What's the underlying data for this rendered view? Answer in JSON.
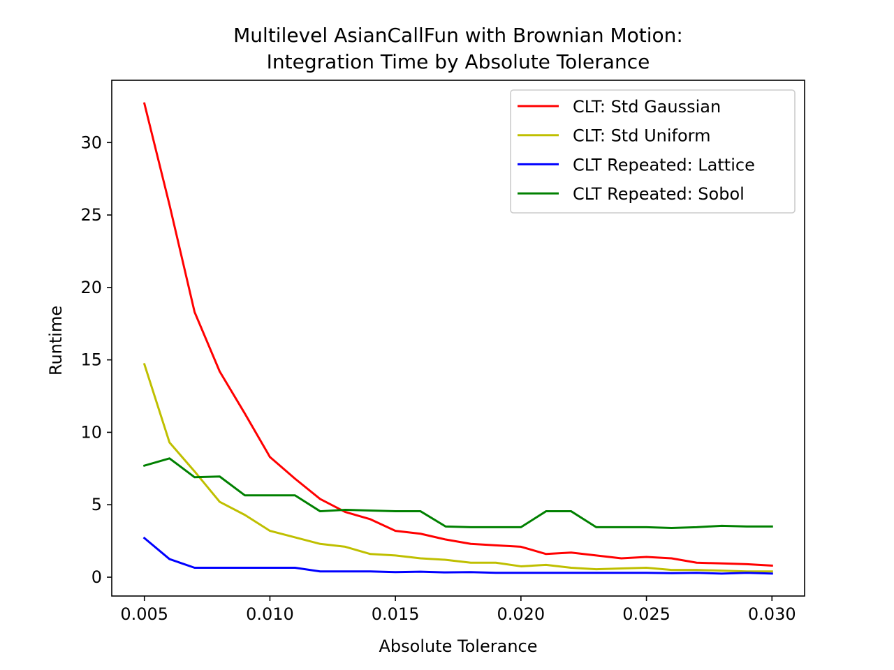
{
  "chart_data": {
    "type": "line",
    "title_line1": "Multilevel AsianCallFun with Brownian Motion:",
    "title_line2": "Integration Time by Absolute Tolerance",
    "xlabel": "Absolute Tolerance",
    "ylabel": "Runtime",
    "xlim": [
      0.0037,
      0.0313
    ],
    "ylim": [
      -1.3,
      34.3
    ],
    "x_ticks": [
      0.005,
      0.01,
      0.015,
      0.02,
      0.025,
      0.03
    ],
    "x_tick_labels": [
      "0.005",
      "0.010",
      "0.015",
      "0.020",
      "0.025",
      "0.030"
    ],
    "y_ticks": [
      0,
      5,
      10,
      15,
      20,
      25,
      30
    ],
    "y_tick_labels": [
      "0",
      "5",
      "10",
      "15",
      "20",
      "25",
      "30"
    ],
    "grid": false,
    "legend_position": "top-right",
    "x": [
      0.005,
      0.006,
      0.007,
      0.008,
      0.009,
      0.01,
      0.011,
      0.012,
      0.013,
      0.014,
      0.015,
      0.016,
      0.017,
      0.018,
      0.019,
      0.02,
      0.021,
      0.022,
      0.023,
      0.024,
      0.025,
      0.026,
      0.027,
      0.028,
      0.029,
      0.03
    ],
    "series": [
      {
        "name": "CLT: Std Gaussian",
        "color": "#ff0000",
        "values": [
          32.7,
          25.7,
          18.3,
          14.2,
          11.3,
          8.3,
          6.8,
          5.4,
          4.5,
          4.0,
          3.2,
          3.0,
          2.6,
          2.3,
          2.2,
          2.1,
          1.6,
          1.7,
          1.5,
          1.3,
          1.4,
          1.3,
          1.0,
          0.95,
          0.9,
          0.8
        ]
      },
      {
        "name": "CLT: Std Uniform",
        "color": "#bfbf00",
        "values": [
          14.7,
          9.3,
          7.3,
          5.2,
          4.3,
          3.2,
          2.75,
          2.3,
          2.1,
          1.6,
          1.5,
          1.3,
          1.2,
          1.0,
          1.0,
          0.75,
          0.85,
          0.65,
          0.55,
          0.6,
          0.65,
          0.5,
          0.5,
          0.45,
          0.4,
          0.4
        ]
      },
      {
        "name": "CLT Repeated: Lattice",
        "color": "#0000ff",
        "values": [
          2.7,
          1.25,
          0.65,
          0.65,
          0.65,
          0.65,
          0.65,
          0.4,
          0.4,
          0.4,
          0.35,
          0.38,
          0.33,
          0.35,
          0.3,
          0.3,
          0.3,
          0.3,
          0.3,
          0.3,
          0.3,
          0.28,
          0.3,
          0.25,
          0.3,
          0.25
        ]
      },
      {
        "name": "CLT Repeated: Sobol",
        "color": "#008000",
        "values": [
          7.7,
          8.2,
          6.9,
          6.95,
          5.65,
          5.65,
          5.65,
          4.55,
          4.65,
          4.6,
          4.55,
          4.55,
          3.5,
          3.45,
          3.45,
          3.45,
          4.55,
          4.55,
          3.45,
          3.45,
          3.45,
          3.4,
          3.45,
          3.55,
          3.5,
          3.5
        ]
      }
    ]
  }
}
